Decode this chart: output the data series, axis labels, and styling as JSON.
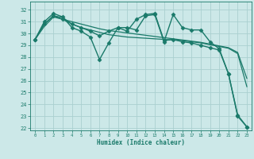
{
  "xlabel": "Humidex (Indice chaleur)",
  "bg_color": "#cce8e8",
  "grid_color": "#aad0d0",
  "line_color": "#1a7a6a",
  "xlim": [
    -0.5,
    23.5
  ],
  "ylim": [
    21.8,
    32.7
  ],
  "yticks": [
    22,
    23,
    24,
    25,
    26,
    27,
    28,
    29,
    30,
    31,
    32
  ],
  "xticks": [
    0,
    1,
    2,
    3,
    4,
    5,
    6,
    7,
    8,
    9,
    10,
    11,
    12,
    13,
    14,
    15,
    16,
    17,
    18,
    19,
    20,
    21,
    22,
    23
  ],
  "series": [
    {
      "x": [
        0,
        1,
        2,
        3,
        4,
        5,
        6,
        7,
        8,
        9,
        10,
        11,
        12,
        13,
        14,
        15,
        16,
        17,
        18,
        19,
        20,
        21,
        22,
        23
      ],
      "y": [
        29.5,
        31.0,
        31.7,
        31.4,
        30.5,
        30.2,
        29.7,
        27.8,
        29.2,
        30.5,
        30.5,
        30.3,
        31.5,
        31.6,
        29.3,
        31.6,
        30.5,
        30.3,
        30.3,
        29.3,
        28.7,
        26.6,
        23.1,
        22.1
      ],
      "marker": "D",
      "marker_size": 2.5,
      "line_width": 1.0
    },
    {
      "x": [
        0,
        1,
        2,
        3,
        4,
        5,
        6,
        7,
        8,
        9,
        10,
        11,
        12,
        13,
        14,
        15,
        16,
        17,
        18,
        19,
        20,
        21,
        22,
        23
      ],
      "y": [
        29.5,
        30.8,
        31.5,
        31.35,
        30.8,
        30.5,
        30.3,
        30.1,
        29.9,
        29.8,
        29.7,
        29.65,
        29.6,
        29.55,
        29.5,
        29.45,
        29.4,
        29.3,
        29.2,
        29.05,
        28.9,
        28.75,
        28.3,
        25.5
      ],
      "marker": null,
      "marker_size": 0,
      "line_width": 0.9
    },
    {
      "x": [
        0,
        1,
        2,
        3,
        4,
        5,
        6,
        7,
        8,
        9,
        10,
        11,
        12,
        13,
        14,
        15,
        16,
        17,
        18,
        19,
        20,
        21,
        22,
        23
      ],
      "y": [
        29.5,
        30.6,
        31.4,
        31.2,
        31.0,
        30.8,
        30.6,
        30.4,
        30.25,
        30.15,
        30.05,
        29.95,
        29.85,
        29.75,
        29.65,
        29.55,
        29.45,
        29.35,
        29.25,
        29.1,
        28.95,
        28.8,
        28.4,
        26.2
      ],
      "marker": null,
      "marker_size": 0,
      "line_width": 0.9
    },
    {
      "x": [
        0,
        1,
        2,
        3,
        4,
        5,
        6,
        7,
        8,
        9,
        10,
        11,
        12,
        13,
        14,
        15,
        16,
        17,
        18,
        19,
        20,
        21,
        22,
        23
      ],
      "y": [
        29.5,
        30.8,
        31.5,
        31.2,
        30.8,
        30.5,
        30.2,
        29.8,
        30.2,
        30.5,
        30.2,
        31.2,
        31.6,
        31.7,
        29.4,
        29.5,
        29.3,
        29.2,
        29.0,
        28.8,
        28.6,
        26.6,
        23.0,
        22.1
      ],
      "marker": "D",
      "marker_size": 2.5,
      "line_width": 1.0
    }
  ]
}
